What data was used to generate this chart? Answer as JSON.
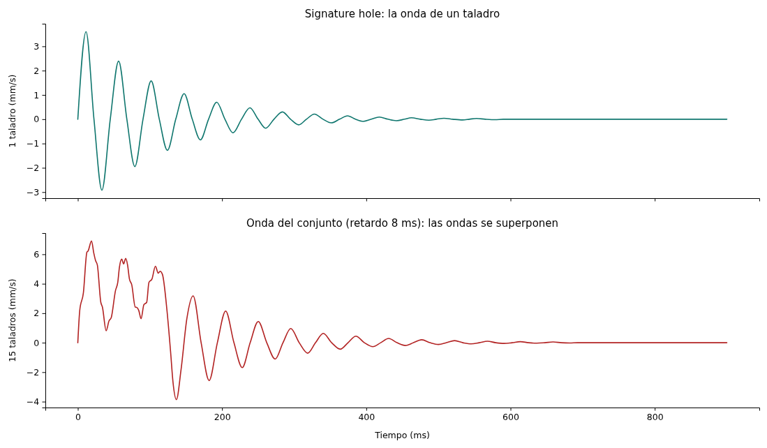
{
  "chart_data": [
    {
      "type": "line",
      "title": "Signature hole: la onda de un taladro",
      "ylabel": "1 taladro (mm/s)",
      "xlim": [
        -45,
        945
      ],
      "xticks": [
        0,
        200,
        400,
        600,
        800
      ],
      "ylim": [
        -3.25,
        3.93
      ],
      "yticks": [
        -3,
        -2,
        -1,
        0,
        1,
        2,
        3
      ],
      "tick_labels": "y",
      "series": [
        {
          "color": "#0f766e",
          "x": [
            0,
            11.4,
            22.4,
            33.4,
            45,
            56.6,
            68,
            79.1,
            90.4,
            101.7,
            113,
            124.2,
            135.8,
            147.4,
            158.7,
            170,
            181.3,
            192.6,
            204,
            215.2,
            227,
            238.6,
            250,
            260.5,
            272,
            283.7,
            295,
            306.3,
            317,
            328,
            340,
            351.4,
            363,
            374,
            385,
            395.6,
            407,
            418,
            430,
            441.6,
            453,
            462.6,
            475,
            486.8,
            497,
            507.7,
            520,
            533.5,
            543,
            552.8,
            565,
            578.6,
            590,
            900
          ],
          "values": [
            0,
            3.6,
            0,
            -2.92,
            0,
            2.39,
            0,
            -1.95,
            0,
            1.58,
            0,
            -1.28,
            0,
            1.05,
            0,
            -0.85,
            0,
            0.7,
            0,
            -0.56,
            0,
            0.47,
            0,
            -0.37,
            0,
            0.3,
            0,
            -0.23,
            0,
            0.21,
            0,
            -0.15,
            0,
            0.14,
            0,
            -0.09,
            0,
            0.09,
            0,
            -0.06,
            0,
            0.06,
            0,
            -0.04,
            0,
            0.04,
            0,
            -0.03,
            0,
            0.03,
            0,
            -0.02,
            0,
            0
          ]
        }
      ]
    },
    {
      "type": "line",
      "title": "Onda del conjunto (retardo 8 ms): las ondas se superponen",
      "ylabel": "15 taladros (mm/s)",
      "xlabel": "Tiempo (ms)",
      "xlim": [
        -45,
        945
      ],
      "xticks": [
        0,
        200,
        400,
        600,
        800
      ],
      "ylim": [
        -4.4,
        7.44
      ],
      "yticks": [
        -4,
        -2,
        0,
        2,
        4,
        6
      ],
      "series": [
        {
          "color": "#b22222",
          "x": [
            0,
            2.7,
            7.7,
            12.6,
            14.2,
            19,
            22.2,
            24.5,
            27.1,
            31.9,
            34.1,
            39.3,
            43.2,
            46.4,
            52.2,
            55.4,
            57.7,
            60.9,
            63.5,
            66.4,
            69,
            71.6,
            74.8,
            79.6,
            81.9,
            84.5,
            87.7,
            91.6,
            95.5,
            98.6,
            102.8,
            107.6,
            111.5,
            114.1,
            117.3,
            123.8,
            128.6,
            131.9,
            136.7,
            143.1,
            151.2,
            159.9,
            171,
            182.1,
            193.5,
            205,
            216.5,
            228,
            239,
            250.2,
            262,
            273.7,
            284.5,
            295.3,
            307,
            318.8,
            329.6,
            340.4,
            352,
            363.9,
            374.7,
            385.6,
            397.3,
            409.1,
            420,
            431,
            442.6,
            454.2,
            465.5,
            476.8,
            488.4,
            500,
            511.2,
            522.5,
            534,
            545.5,
            556.7,
            568,
            579.5,
            591,
            602.2,
            613.5,
            625,
            636.5,
            647.7,
            659,
            670.5,
            682,
            693.2,
            900
          ],
          "values": [
            0,
            2.2,
            3.37,
            6.14,
            6.22,
            6.9,
            6.07,
            5.59,
            5.27,
            2.74,
            2.42,
            0.81,
            1.47,
            1.71,
            3.53,
            4.09,
            5.12,
            5.67,
            5.35,
            5.72,
            5.27,
            4.32,
            3.93,
            2.42,
            2.39,
            2.19,
            1.63,
            2.58,
            2.74,
            4.09,
            4.32,
            5.19,
            4.72,
            4.85,
            4.64,
            2.1,
            -0.59,
            -2.64,
            -3.86,
            -1.85,
            1.63,
            3.18,
            0,
            -2.57,
            0,
            2.15,
            0,
            -1.69,
            0,
            1.44,
            0,
            -1.11,
            0,
            0.96,
            0,
            -0.71,
            0,
            0.63,
            0,
            -0.44,
            0,
            0.44,
            0,
            -0.27,
            0,
            0.29,
            0,
            -0.19,
            0,
            0.2,
            0,
            -0.12,
            0,
            0.14,
            0,
            -0.08,
            0,
            0.1,
            0,
            -0.05,
            0,
            0.07,
            0,
            -0.03,
            0,
            0.05,
            0,
            -0.02,
            0,
            0
          ]
        }
      ]
    }
  ]
}
